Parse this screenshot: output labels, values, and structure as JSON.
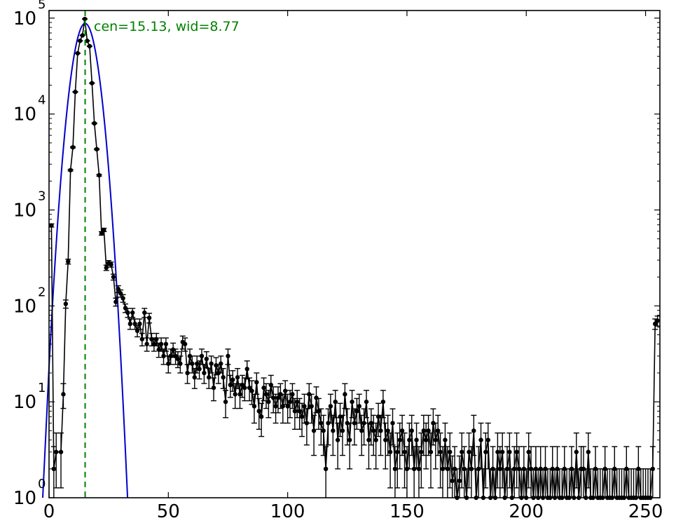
{
  "chart_data": {
    "type": "scatter",
    "title": "",
    "xlabel": "",
    "ylabel": "",
    "xlim": [
      0,
      256
    ],
    "ylim": [
      1,
      120000
    ],
    "y_scale": "log",
    "grid": false,
    "x_ticks": [
      0,
      50,
      100,
      150,
      200,
      250
    ],
    "x_tick_labels": [
      "0",
      "50",
      "100",
      "150",
      "200",
      "250"
    ],
    "y_ticks": [
      1,
      10,
      100,
      1000,
      10000,
      100000
    ],
    "y_tick_labels": [
      {
        "base": "10",
        "exp": "0"
      },
      {
        "base": "10",
        "exp": "1"
      },
      {
        "base": "10",
        "exp": "2"
      },
      {
        "base": "10",
        "exp": "3"
      },
      {
        "base": "10",
        "exp": "4"
      },
      {
        "base": "10",
        "exp": "5"
      }
    ],
    "annotation": {
      "text": "cen=15.13, wid=8.77",
      "color": "#008000"
    },
    "marker_line": {
      "x": 15.13,
      "color": "#008000",
      "style": "dashed"
    },
    "fit": {
      "type": "gaussian",
      "center": 15.13,
      "width": 8.77,
      "amplitude": 88000,
      "color": "#0000cc"
    },
    "series": [
      {
        "color": "#000000",
        "points": [
          [
            1,
            690
          ],
          [
            2,
            2
          ],
          [
            3,
            3
          ],
          [
            5,
            3
          ],
          [
            6,
            12
          ],
          [
            7,
            105
          ],
          [
            8,
            290
          ],
          [
            9,
            2600
          ],
          [
            10,
            4500
          ],
          [
            11,
            17000
          ],
          [
            12,
            43000
          ],
          [
            13,
            58000
          ],
          [
            14,
            66000
          ],
          [
            15,
            98000
          ],
          [
            16,
            58000
          ],
          [
            17,
            51000
          ],
          [
            18,
            21000
          ],
          [
            19,
            8000
          ],
          [
            20,
            4300
          ],
          [
            21,
            2300
          ],
          [
            22,
            570
          ],
          [
            23,
            620
          ],
          [
            24,
            250
          ],
          [
            25,
            280
          ],
          [
            26,
            270
          ],
          [
            27,
            200
          ],
          [
            28,
            110
          ],
          [
            29,
            150
          ],
          [
            30,
            135
          ],
          [
            31,
            120
          ],
          [
            32,
            95
          ],
          [
            33,
            85
          ],
          [
            34,
            65
          ],
          [
            35,
            85
          ],
          [
            36,
            65
          ],
          [
            37,
            55
          ],
          [
            38,
            65
          ],
          [
            39,
            45
          ],
          [
            40,
            85
          ],
          [
            41,
            40
          ],
          [
            42,
            75
          ],
          [
            43,
            45
          ],
          [
            44,
            40
          ],
          [
            45,
            45
          ],
          [
            46,
            35
          ],
          [
            47,
            40
          ],
          [
            48,
            30
          ],
          [
            49,
            40
          ],
          [
            50,
            25
          ],
          [
            51,
            30
          ],
          [
            52,
            35
          ],
          [
            53,
            30
          ],
          [
            54,
            28
          ],
          [
            55,
            25
          ],
          [
            56,
            42
          ],
          [
            57,
            40
          ],
          [
            58,
            20
          ],
          [
            59,
            30
          ],
          [
            60,
            25
          ],
          [
            61,
            18
          ],
          [
            62,
            25
          ],
          [
            63,
            22
          ],
          [
            64,
            30
          ],
          [
            65,
            20
          ],
          [
            66,
            28
          ],
          [
            67,
            18
          ],
          [
            68,
            25
          ],
          [
            69,
            14
          ],
          [
            70,
            24
          ],
          [
            71,
            20
          ],
          [
            72,
            25
          ],
          [
            73,
            18
          ],
          [
            74,
            10
          ],
          [
            75,
            30
          ],
          [
            76,
            15
          ],
          [
            77,
            17
          ],
          [
            78,
            12
          ],
          [
            79,
            18
          ],
          [
            80,
            12
          ],
          [
            81,
            15
          ],
          [
            82,
            14
          ],
          [
            83,
            22
          ],
          [
            84,
            14
          ],
          [
            85,
            13
          ],
          [
            86,
            9
          ],
          [
            87,
            16
          ],
          [
            88,
            8
          ],
          [
            89,
            7
          ],
          [
            90,
            14
          ],
          [
            91,
            12
          ],
          [
            92,
            10
          ],
          [
            93,
            15
          ],
          [
            94,
            11
          ],
          [
            95,
            9
          ],
          [
            96,
            11
          ],
          [
            97,
            12
          ],
          [
            98,
            9
          ],
          [
            99,
            13
          ],
          [
            100,
            9
          ],
          [
            101,
            10
          ],
          [
            102,
            12
          ],
          [
            103,
            8
          ],
          [
            104,
            10
          ],
          [
            105,
            8
          ],
          [
            106,
            7
          ],
          [
            107,
            9
          ],
          [
            108,
            6
          ],
          [
            109,
            12
          ],
          [
            110,
            9
          ],
          [
            111,
            5
          ],
          [
            112,
            11
          ],
          [
            113,
            8
          ],
          [
            114,
            6
          ],
          [
            115,
            5
          ],
          [
            116,
            2
          ],
          [
            117,
            6
          ],
          [
            118,
            9
          ],
          [
            119,
            5
          ],
          [
            120,
            10
          ],
          [
            121,
            4
          ],
          [
            122,
            7
          ],
          [
            123,
            5
          ],
          [
            124,
            12
          ],
          [
            125,
            6
          ],
          [
            126,
            4
          ],
          [
            127,
            10
          ],
          [
            128,
            6
          ],
          [
            129,
            8
          ],
          [
            130,
            9
          ],
          [
            131,
            5
          ],
          [
            132,
            6
          ],
          [
            133,
            10
          ],
          [
            134,
            4
          ],
          [
            135,
            6
          ],
          [
            136,
            5
          ],
          [
            137,
            4
          ],
          [
            138,
            7
          ],
          [
            139,
            5
          ],
          [
            140,
            10
          ],
          [
            141,
            4
          ],
          [
            142,
            5
          ],
          [
            143,
            3
          ],
          [
            144,
            6
          ],
          [
            145,
            2
          ],
          [
            146,
            3
          ],
          [
            147,
            4
          ],
          [
            148,
            5
          ],
          [
            149,
            3
          ],
          [
            150,
            2
          ],
          [
            151,
            4
          ],
          [
            152,
            5
          ],
          [
            153,
            2
          ],
          [
            154,
            4
          ],
          [
            155,
            2
          ],
          [
            156,
            3
          ],
          [
            157,
            5
          ],
          [
            158,
            4
          ],
          [
            159,
            5
          ],
          [
            160,
            3
          ],
          [
            161,
            6
          ],
          [
            162,
            4
          ],
          [
            163,
            5
          ],
          [
            164,
            3
          ],
          [
            165,
            2
          ],
          [
            166,
            4
          ],
          [
            167,
            2
          ],
          [
            168,
            3
          ],
          [
            169,
            1.5
          ],
          [
            170,
            2
          ],
          [
            171,
            1
          ],
          [
            172,
            1.5
          ],
          [
            173,
            3
          ],
          [
            174,
            2
          ],
          [
            175,
            1
          ],
          [
            176,
            3
          ],
          [
            177,
            2
          ],
          [
            178,
            5
          ],
          [
            179,
            1
          ],
          [
            180,
            2
          ],
          [
            181,
            4
          ],
          [
            182,
            1
          ],
          [
            183,
            3
          ],
          [
            184,
            4
          ],
          [
            185,
            1
          ],
          [
            186,
            2
          ],
          [
            187,
            1
          ],
          [
            188,
            3
          ],
          [
            189,
            2
          ],
          [
            190,
            3
          ],
          [
            191,
            1
          ],
          [
            192,
            2
          ],
          [
            193,
            3
          ],
          [
            194,
            1
          ],
          [
            195,
            2
          ],
          [
            196,
            3
          ],
          [
            197,
            2
          ],
          [
            198,
            1
          ],
          [
            199,
            2
          ],
          [
            200,
            1
          ],
          [
            201,
            3
          ],
          [
            202,
            2
          ],
          [
            203,
            1
          ],
          [
            204,
            2
          ],
          [
            205,
            1
          ],
          [
            206,
            2
          ],
          [
            207,
            1
          ],
          [
            208,
            2
          ],
          [
            209,
            1
          ],
          [
            210,
            1
          ],
          [
            211,
            2
          ],
          [
            212,
            1
          ],
          [
            213,
            2
          ],
          [
            214,
            1
          ],
          [
            215,
            1
          ],
          [
            216,
            2
          ],
          [
            217,
            1
          ],
          [
            218,
            1
          ],
          [
            219,
            2
          ],
          [
            220,
            1
          ],
          [
            221,
            3
          ],
          [
            222,
            1
          ],
          [
            223,
            2
          ],
          [
            224,
            2
          ],
          [
            225,
            1
          ],
          [
            226,
            3
          ],
          [
            227,
            1
          ],
          [
            228,
            1
          ],
          [
            229,
            2
          ],
          [
            230,
            1
          ],
          [
            231,
            1
          ],
          [
            232,
            1
          ],
          [
            233,
            2
          ],
          [
            234,
            1
          ],
          [
            235,
            1
          ],
          [
            236,
            1
          ],
          [
            237,
            2
          ],
          [
            238,
            1
          ],
          [
            239,
            1
          ],
          [
            240,
            1
          ],
          [
            241,
            1
          ],
          [
            242,
            2
          ],
          [
            243,
            1
          ],
          [
            244,
            1
          ],
          [
            245,
            1
          ],
          [
            246,
            1
          ],
          [
            247,
            2
          ],
          [
            248,
            1
          ],
          [
            249,
            1
          ],
          [
            250,
            1
          ],
          [
            251,
            1
          ],
          [
            252,
            1
          ],
          [
            253,
            2
          ],
          [
            254,
            65
          ],
          [
            255,
            70
          ]
        ]
      }
    ]
  }
}
